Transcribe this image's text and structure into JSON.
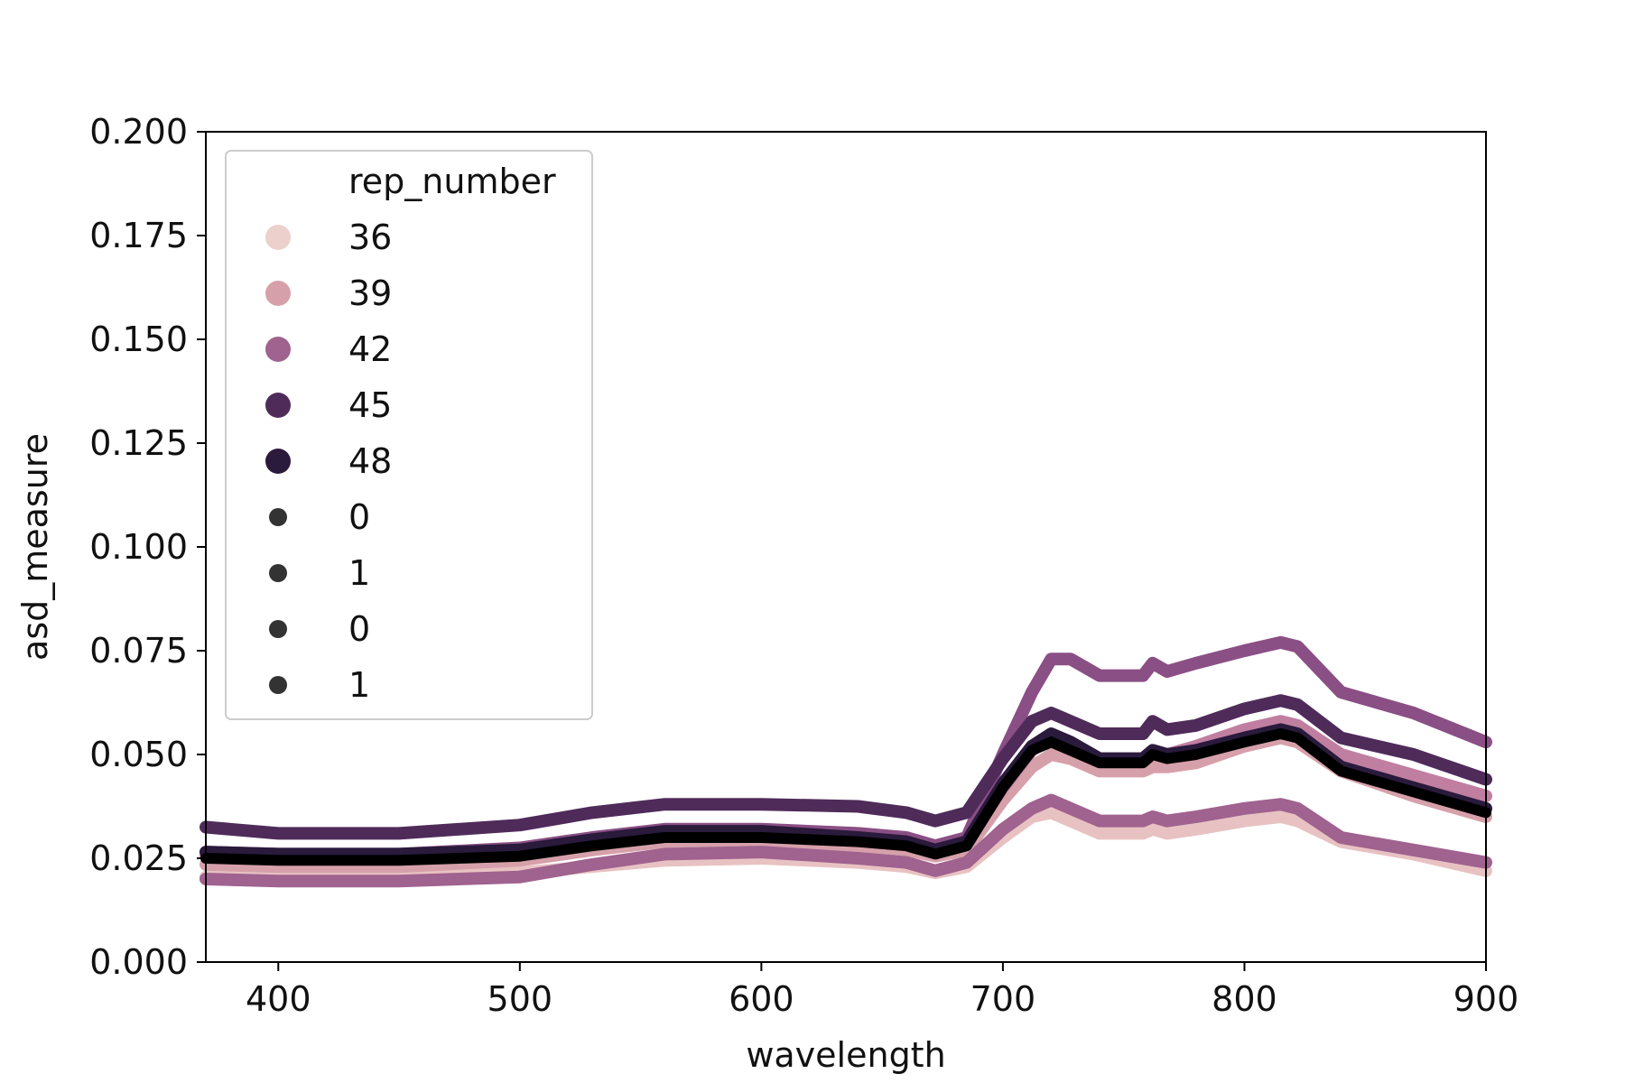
{
  "chart_data": {
    "type": "line",
    "title": "",
    "xlabel": "wavelength",
    "ylabel": "asd_measure",
    "xlim": [
      370,
      900
    ],
    "ylim": [
      0,
      0.2
    ],
    "xticks": [
      "400",
      "500",
      "600",
      "700",
      "800",
      "900"
    ],
    "yticks": [
      "0.000",
      "0.025",
      "0.050",
      "0.075",
      "0.100",
      "0.125",
      "0.150",
      "0.175",
      "0.200"
    ],
    "grid": false,
    "legend": {
      "position": "upper-left",
      "title": "rep_number",
      "hue_entries": [
        {
          "label": "36",
          "color": "#ebd0cb"
        },
        {
          "label": "39",
          "color": "#d6a0aa"
        },
        {
          "label": "42",
          "color": "#a0628f"
        },
        {
          "label": "45",
          "color": "#4f2b5a"
        },
        {
          "label": "48",
          "color": "#2a1a3c"
        }
      ],
      "size_entries": [
        {
          "label": "0"
        },
        {
          "label": "1"
        },
        {
          "label": "0"
        },
        {
          "label": "1"
        }
      ]
    },
    "x": [
      370,
      400,
      450,
      500,
      530,
      560,
      600,
      640,
      660,
      672,
      685,
      700,
      712,
      720,
      728,
      740,
      758,
      762,
      768,
      780,
      800,
      815,
      822,
      840,
      870,
      900
    ],
    "series": [
      {
        "name": "36",
        "color": "#e8c2c2",
        "width": 14,
        "values": [
          0.0205,
          0.02,
          0.02,
          0.0215,
          0.023,
          0.0245,
          0.025,
          0.024,
          0.023,
          0.0215,
          0.023,
          0.03,
          0.035,
          0.036,
          0.034,
          0.031,
          0.031,
          0.032,
          0.031,
          0.032,
          0.034,
          0.035,
          0.034,
          0.029,
          0.026,
          0.022
        ]
      },
      {
        "name": "39",
        "color": "#d6a0aa",
        "width": 14,
        "values": [
          0.0235,
          0.023,
          0.023,
          0.0245,
          0.027,
          0.029,
          0.0295,
          0.028,
          0.027,
          0.0255,
          0.027,
          0.039,
          0.047,
          0.05,
          0.049,
          0.046,
          0.046,
          0.047,
          0.047,
          0.048,
          0.052,
          0.054,
          0.053,
          0.046,
          0.04,
          0.035
        ]
      },
      {
        "name": "42",
        "color": "#c07fa0",
        "width": 14,
        "values": [
          0.0255,
          0.025,
          0.025,
          0.0265,
          0.029,
          0.031,
          0.031,
          0.03,
          0.029,
          0.027,
          0.029,
          0.042,
          0.051,
          0.054,
          0.052,
          0.049,
          0.049,
          0.051,
          0.05,
          0.052,
          0.056,
          0.058,
          0.057,
          0.05,
          0.045,
          0.04
        ]
      },
      {
        "name": "42",
        "color": "#a0628f",
        "width": 14,
        "values": [
          0.02,
          0.0195,
          0.0195,
          0.0205,
          0.0235,
          0.026,
          0.0265,
          0.025,
          0.024,
          0.022,
          0.024,
          0.032,
          0.037,
          0.039,
          0.037,
          0.034,
          0.034,
          0.035,
          0.034,
          0.035,
          0.037,
          0.038,
          0.037,
          0.03,
          0.027,
          0.024
        ]
      },
      {
        "name": "42",
        "color": "#8a4f84",
        "width": 14,
        "values": [
          0.0265,
          0.026,
          0.026,
          0.0275,
          0.03,
          0.032,
          0.032,
          0.031,
          0.03,
          0.028,
          0.03,
          0.05,
          0.065,
          0.073,
          0.073,
          0.069,
          0.069,
          0.072,
          0.07,
          0.072,
          0.075,
          0.077,
          0.076,
          0.065,
          0.06,
          0.053
        ]
      },
      {
        "name": "45",
        "color": "#4f2b5a",
        "width": 14,
        "values": [
          0.0325,
          0.031,
          0.031,
          0.033,
          0.036,
          0.038,
          0.038,
          0.0375,
          0.036,
          0.034,
          0.036,
          0.049,
          0.058,
          0.06,
          0.058,
          0.055,
          0.055,
          0.058,
          0.056,
          0.057,
          0.061,
          0.063,
          0.062,
          0.054,
          0.05,
          0.044
        ]
      },
      {
        "name": "48",
        "color": "#2a1a3c",
        "width": 14,
        "values": [
          0.0265,
          0.026,
          0.026,
          0.027,
          0.0295,
          0.0315,
          0.0315,
          0.03,
          0.029,
          0.027,
          0.029,
          0.043,
          0.052,
          0.055,
          0.053,
          0.049,
          0.049,
          0.051,
          0.05,
          0.051,
          0.054,
          0.056,
          0.055,
          0.047,
          0.042,
          0.037
        ]
      },
      {
        "name": "48",
        "color": "#000000",
        "width": 12,
        "values": [
          0.025,
          0.0245,
          0.0245,
          0.0255,
          0.028,
          0.03,
          0.03,
          0.029,
          0.028,
          0.026,
          0.028,
          0.042,
          0.051,
          0.053,
          0.051,
          0.048,
          0.048,
          0.05,
          0.049,
          0.05,
          0.053,
          0.055,
          0.054,
          0.046,
          0.041,
          0.036
        ]
      }
    ]
  }
}
